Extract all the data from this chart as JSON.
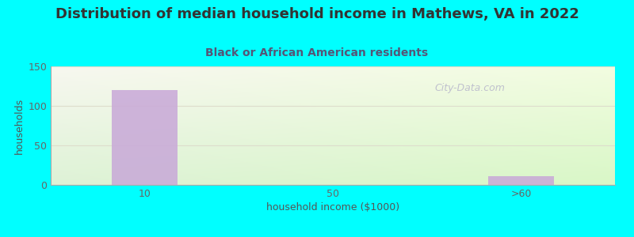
{
  "title": "Distribution of median household income in Mathews, VA in 2022",
  "subtitle": "Black or African American residents",
  "xlabel": "household income ($1000)",
  "ylabel": "households",
  "background_color": "#00FFFF",
  "bar_color": "#c8a8d8",
  "categories": [
    "10",
    "50",
    ">60"
  ],
  "values": [
    120,
    0,
    11
  ],
  "ylim": [
    0,
    150
  ],
  "yticks": [
    0,
    50,
    100,
    150
  ],
  "watermark": "City-Data.com",
  "title_fontsize": 13,
  "subtitle_fontsize": 10,
  "axis_label_fontsize": 9,
  "tick_fontsize": 9,
  "title_color": "#333333",
  "subtitle_color": "#555577",
  "tick_color": "#666666",
  "label_color": "#555555",
  "watermark_color": "#bbbbcc",
  "grid_color": "#ddddcc"
}
